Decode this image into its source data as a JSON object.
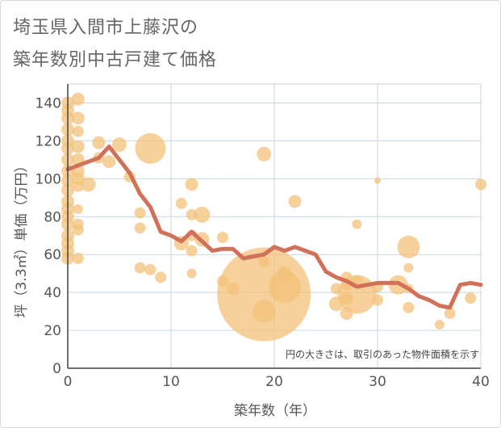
{
  "title_line1": "埼玉県入間市上藤沢の",
  "title_line2": "築年数別中古戸建て価格",
  "chart_data": {
    "type": "scatter",
    "xlabel": "築年数（年）",
    "ylabel": "坪（3.3㎡）単価（万円）",
    "note": "円の大きさは、取引のあった物件面積を示す",
    "xlim": [
      0,
      40
    ],
    "ylim": [
      0,
      150
    ],
    "xticks": [
      0,
      10,
      20,
      30,
      40
    ],
    "yticks": [
      0,
      20,
      40,
      60,
      80,
      100,
      120,
      140
    ],
    "grid": true,
    "colors": {
      "bubble": "#f3c27a",
      "line": "#d2715a",
      "grid": "#c9d6e2",
      "axis": "#444444"
    },
    "bubbles": [
      {
        "x": 0,
        "y": 140,
        "size": 8
      },
      {
        "x": 0,
        "y": 136,
        "size": 8
      },
      {
        "x": 0,
        "y": 132,
        "size": 8
      },
      {
        "x": 0,
        "y": 126,
        "size": 8
      },
      {
        "x": 0,
        "y": 120,
        "size": 8
      },
      {
        "x": 0,
        "y": 116,
        "size": 8
      },
      {
        "x": 0,
        "y": 110,
        "size": 8
      },
      {
        "x": 0,
        "y": 104,
        "size": 8
      },
      {
        "x": 0,
        "y": 99,
        "size": 8
      },
      {
        "x": 0,
        "y": 94,
        "size": 8
      },
      {
        "x": 0,
        "y": 88,
        "size": 8
      },
      {
        "x": 0,
        "y": 84,
        "size": 8
      },
      {
        "x": 0,
        "y": 80,
        "size": 8
      },
      {
        "x": 0,
        "y": 76,
        "size": 8
      },
      {
        "x": 0,
        "y": 70,
        "size": 8
      },
      {
        "x": 0,
        "y": 66,
        "size": 8
      },
      {
        "x": 0,
        "y": 62,
        "size": 8
      },
      {
        "x": 0,
        "y": 58,
        "size": 8
      },
      {
        "x": 1,
        "y": 142,
        "size": 8
      },
      {
        "x": 1,
        "y": 132,
        "size": 8
      },
      {
        "x": 1,
        "y": 125,
        "size": 7
      },
      {
        "x": 1,
        "y": 117,
        "size": 8
      },
      {
        "x": 1,
        "y": 110,
        "size": 8
      },
      {
        "x": 1,
        "y": 104,
        "size": 8
      },
      {
        "x": 1,
        "y": 100,
        "size": 8
      },
      {
        "x": 1,
        "y": 96,
        "size": 7
      },
      {
        "x": 1,
        "y": 84,
        "size": 6
      },
      {
        "x": 1,
        "y": 76,
        "size": 7
      },
      {
        "x": 1,
        "y": 73,
        "size": 7
      },
      {
        "x": 1,
        "y": 58,
        "size": 7
      },
      {
        "x": 2,
        "y": 97,
        "size": 9
      },
      {
        "x": 3,
        "y": 119,
        "size": 8
      },
      {
        "x": 3,
        "y": 111,
        "size": 7
      },
      {
        "x": 4,
        "y": 109,
        "size": 8
      },
      {
        "x": 5,
        "y": 118,
        "size": 9
      },
      {
        "x": 6,
        "y": 101,
        "size": 7
      },
      {
        "x": 7,
        "y": 82,
        "size": 7
      },
      {
        "x": 7,
        "y": 74,
        "size": 7
      },
      {
        "x": 7,
        "y": 53,
        "size": 7
      },
      {
        "x": 8,
        "y": 116,
        "size": 19
      },
      {
        "x": 8,
        "y": 52,
        "size": 7
      },
      {
        "x": 9,
        "y": 48,
        "size": 7
      },
      {
        "x": 11,
        "y": 87,
        "size": 7
      },
      {
        "x": 11,
        "y": 66,
        "size": 9
      },
      {
        "x": 12,
        "y": 97,
        "size": 8
      },
      {
        "x": 12,
        "y": 81,
        "size": 7
      },
      {
        "x": 12,
        "y": 70,
        "size": 7
      },
      {
        "x": 12,
        "y": 62,
        "size": 7
      },
      {
        "x": 12,
        "y": 50,
        "size": 6
      },
      {
        "x": 13,
        "y": 81,
        "size": 10
      },
      {
        "x": 13,
        "y": 68,
        "size": 9
      },
      {
        "x": 15,
        "y": 69,
        "size": 7
      },
      {
        "x": 15,
        "y": 46,
        "size": 7
      },
      {
        "x": 16,
        "y": 42,
        "size": 8
      },
      {
        "x": 19,
        "y": 113,
        "size": 9
      },
      {
        "x": 19,
        "y": 56,
        "size": 7
      },
      {
        "x": 19,
        "y": 39,
        "size": 58
      },
      {
        "x": 19,
        "y": 30,
        "size": 14
      },
      {
        "x": 21,
        "y": 50,
        "size": 9
      },
      {
        "x": 21,
        "y": 43,
        "size": 20
      },
      {
        "x": 22,
        "y": 88,
        "size": 8
      },
      {
        "x": 26,
        "y": 42,
        "size": 7
      },
      {
        "x": 26,
        "y": 34,
        "size": 9
      },
      {
        "x": 27,
        "y": 48,
        "size": 7
      },
      {
        "x": 27,
        "y": 44,
        "size": 7
      },
      {
        "x": 27,
        "y": 37,
        "size": 8
      },
      {
        "x": 27,
        "y": 29,
        "size": 8
      },
      {
        "x": 28,
        "y": 76,
        "size": 6
      },
      {
        "x": 28,
        "y": 46,
        "size": 7
      },
      {
        "x": 28,
        "y": 39,
        "size": 24
      },
      {
        "x": 30,
        "y": 99,
        "size": 4
      },
      {
        "x": 30,
        "y": 43,
        "size": 7
      },
      {
        "x": 30,
        "y": 36,
        "size": 7
      },
      {
        "x": 32,
        "y": 44,
        "size": 12
      },
      {
        "x": 33,
        "y": 64,
        "size": 14
      },
      {
        "x": 33,
        "y": 53,
        "size": 6
      },
      {
        "x": 33,
        "y": 42,
        "size": 6
      },
      {
        "x": 33,
        "y": 32,
        "size": 7
      },
      {
        "x": 36,
        "y": 23,
        "size": 6
      },
      {
        "x": 37,
        "y": 29,
        "size": 7
      },
      {
        "x": 39,
        "y": 37,
        "size": 7
      },
      {
        "x": 40,
        "y": 97,
        "size": 7
      }
    ],
    "line": {
      "x": [
        0,
        1,
        2,
        3,
        4,
        5,
        6,
        7,
        8,
        9,
        10,
        11,
        12,
        13,
        14,
        15,
        16,
        17,
        18,
        19,
        20,
        21,
        22,
        23,
        24,
        25,
        26,
        27,
        28,
        29,
        30,
        31,
        32,
        33,
        34,
        35,
        36,
        37,
        38,
        39,
        40
      ],
      "y": [
        105,
        107,
        109,
        111,
        117,
        110,
        103,
        92,
        85,
        72,
        70,
        67,
        72,
        67,
        62,
        63,
        63,
        58,
        59,
        60,
        64,
        62,
        64,
        62,
        60,
        51,
        48,
        46,
        43,
        44,
        45,
        45,
        45,
        42,
        38,
        36,
        33,
        32,
        44,
        45,
        44
      ]
    }
  }
}
